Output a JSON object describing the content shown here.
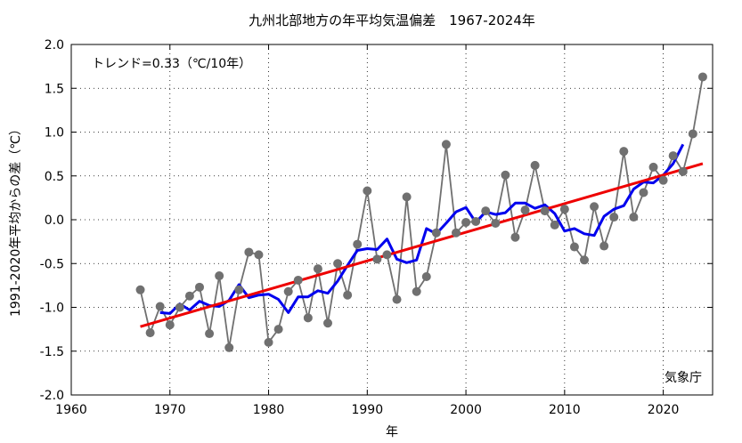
{
  "chart_data": {
    "type": "line",
    "title": "九州北部地方の年平均気温偏差　1967-2024年",
    "xlabel": "年",
    "ylabel": "1991-2020年平均からの差（℃）",
    "trend_label": "トレンド=0.33（℃/10年）",
    "source_label": "気象庁",
    "xlim": [
      1960,
      2025
    ],
    "ylim": [
      -2.0,
      2.0
    ],
    "x_ticks": [
      1960,
      1970,
      1980,
      1990,
      2000,
      2010,
      2020
    ],
    "y_ticks": [
      -2.0,
      -1.5,
      -1.0,
      -0.5,
      0.0,
      0.5,
      1.0,
      1.5,
      2.0
    ],
    "y_tick_labels": [
      "-2.0",
      "-1.5",
      "-1.0",
      "-0.5",
      "0.0",
      "0.5",
      "1.0",
      "1.5",
      "2.0"
    ],
    "grid": true,
    "series": [
      {
        "color": "#707070",
        "x": [
          1967,
          1968,
          1969,
          1970,
          1971,
          1972,
          1973,
          1974,
          1975,
          1976,
          1977,
          1978,
          1979,
          1980,
          1981,
          1982,
          1983,
          1984,
          1985,
          1986,
          1987,
          1988,
          1989,
          1990,
          1991,
          1992,
          1993,
          1994,
          1995,
          1996,
          1997,
          1998,
          1999,
          2000,
          2001,
          2002,
          2003,
          2004,
          2005,
          2006,
          2007,
          2008,
          2009,
          2010,
          2011,
          2012,
          2013,
          2014,
          2015,
          2016,
          2017,
          2018,
          2019,
          2020,
          2021,
          2022,
          2023,
          2024
        ],
        "values": [
          -0.8,
          -1.29,
          -0.99,
          -1.2,
          -1.0,
          -0.87,
          -0.77,
          -1.3,
          -0.64,
          -1.46,
          -0.8,
          -0.37,
          -0.4,
          -1.4,
          -1.25,
          -0.82,
          -0.69,
          -1.12,
          -0.56,
          -1.18,
          -0.5,
          -0.86,
          -0.28,
          0.33,
          -0.45,
          -0.4,
          -0.91,
          0.26,
          -0.82,
          -0.65,
          -0.15,
          0.86,
          -0.15,
          -0.03,
          -0.02,
          0.1,
          -0.04,
          0.51,
          -0.2,
          0.11,
          0.62,
          0.1,
          -0.06,
          0.12,
          -0.31,
          -0.46,
          0.15,
          -0.3,
          0.03,
          0.78,
          0.03,
          0.31,
          0.6,
          0.45,
          0.73,
          0.55,
          0.98,
          1.63
        ]
      },
      {
        "color": "#0000ee",
        "x": [
          1969,
          1970,
          1971,
          1972,
          1973,
          1974,
          1975,
          1976,
          1977,
          1978,
          1979,
          1980,
          1981,
          1982,
          1983,
          1984,
          1985,
          1986,
          1987,
          1988,
          1989,
          1990,
          1991,
          1992,
          1993,
          1994,
          1995,
          1996,
          1997,
          1998,
          1999,
          2000,
          2001,
          2002,
          2003,
          2004,
          2005,
          2006,
          2007,
          2008,
          2009,
          2010,
          2011,
          2012,
          2013,
          2014,
          2015,
          2016,
          2017,
          2018,
          2019,
          2020,
          2021,
          2022
        ],
        "values": [
          -1.06,
          -1.07,
          -0.96,
          -1.03,
          -0.93,
          -0.98,
          -0.99,
          -0.92,
          -0.74,
          -0.89,
          -0.86,
          -0.85,
          -0.91,
          -1.06,
          -0.88,
          -0.88,
          -0.81,
          -0.84,
          -0.7,
          -0.52,
          -0.35,
          -0.33,
          -0.34,
          -0.22,
          -0.45,
          -0.49,
          -0.46,
          -0.1,
          -0.16,
          -0.04,
          0.09,
          0.14,
          -0.03,
          0.09,
          0.06,
          0.08,
          0.19,
          0.19,
          0.13,
          0.17,
          0.07,
          -0.13,
          -0.1,
          -0.16,
          -0.18,
          0.04,
          0.12,
          0.16,
          0.35,
          0.43,
          0.42,
          0.51,
          0.64,
          0.86
        ]
      },
      {
        "color": "#ee0000",
        "x": [
          1967,
          2024
        ],
        "values": [
          -1.22,
          0.64
        ]
      }
    ]
  }
}
